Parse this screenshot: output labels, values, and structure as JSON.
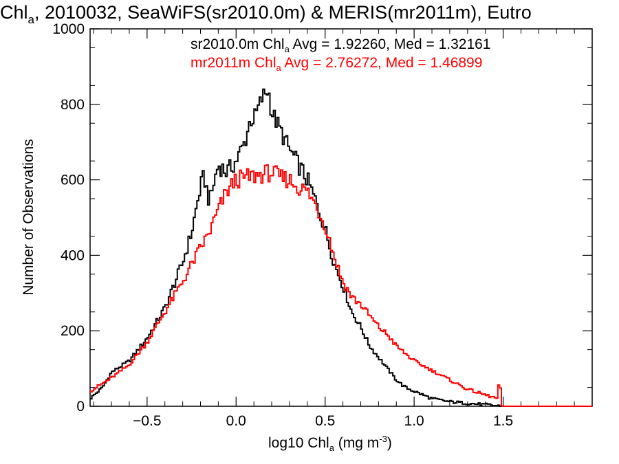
{
  "title": {
    "prefix": "Chl",
    "sub": "a",
    "rest": ", 2010032, SeaWiFS(sr2010.0m) & MERIS(mr2011m), Eutro"
  },
  "xlabel": {
    "prefix": "log10 Chl",
    "sub": "a",
    "mid": " (mg m",
    "sup": "-3",
    "end": ")"
  },
  "ylabel": "Number of Observations",
  "stats": [
    {
      "pre": "sr2010.0m Chl",
      "sub": "a",
      "post": " Avg = 1.92260, Med = 1.32161",
      "color": "#000000"
    },
    {
      "pre": "mr2011m Chl",
      "sub": "a",
      "post": " Avg = 2.76272, Med = 1.46899",
      "color": "#ff0000"
    }
  ],
  "chart_data": {
    "type": "line",
    "xlim": [
      -0.82,
      2.0
    ],
    "ylim": [
      0,
      1000
    ],
    "x_ticks": [
      -0.5,
      0.0,
      0.5,
      1.0,
      1.5
    ],
    "x_tick_labels": [
      "−0.5",
      "0.0",
      "0.5",
      "1.0",
      "1.5"
    ],
    "y_ticks": [
      0,
      200,
      400,
      600,
      800,
      1000
    ],
    "y_tick_labels": [
      "0",
      "200",
      "400",
      "600",
      "800",
      "1000"
    ],
    "grid": false,
    "step": 0.01,
    "series": [
      {
        "color": "#000000",
        "x": [
          -0.82,
          -0.75,
          -0.7,
          -0.6,
          -0.5,
          -0.4,
          -0.3,
          -0.25,
          -0.2,
          -0.18,
          -0.15,
          -0.1,
          -0.05,
          0.0,
          0.05,
          0.08,
          0.1,
          0.15,
          0.18,
          0.2,
          0.25,
          0.3,
          0.35,
          0.4,
          0.45,
          0.5,
          0.55,
          0.6,
          0.65,
          0.7,
          0.75,
          0.8,
          0.85,
          0.9,
          0.95,
          1.0,
          1.1,
          1.2,
          1.3,
          1.4,
          1.45,
          1.5,
          1.6,
          2.0
        ],
        "y": [
          20,
          50,
          90,
          120,
          180,
          260,
          380,
          460,
          580,
          610,
          540,
          640,
          620,
          650,
          700,
          760,
          760,
          820,
          840,
          780,
          730,
          680,
          640,
          600,
          540,
          470,
          380,
          320,
          250,
          210,
          160,
          130,
          100,
          70,
          50,
          40,
          20,
          12,
          8,
          4,
          2,
          0,
          0,
          0
        ]
      },
      {
        "color": "#ff0000",
        "x": [
          -0.82,
          -0.75,
          -0.7,
          -0.6,
          -0.5,
          -0.4,
          -0.3,
          -0.2,
          -0.15,
          -0.1,
          -0.05,
          0.0,
          0.05,
          0.1,
          0.15,
          0.2,
          0.25,
          0.3,
          0.35,
          0.4,
          0.45,
          0.5,
          0.55,
          0.6,
          0.65,
          0.7,
          0.75,
          0.8,
          0.85,
          0.9,
          0.95,
          1.0,
          1.1,
          1.2,
          1.3,
          1.4,
          1.47,
          1.48,
          1.49,
          1.5,
          1.6,
          2.0
        ],
        "y": [
          40,
          60,
          75,
          110,
          170,
          250,
          330,
          420,
          460,
          520,
          570,
          600,
          605,
          610,
          615,
          620,
          605,
          600,
          580,
          570,
          530,
          480,
          400,
          330,
          290,
          270,
          240,
          210,
          190,
          160,
          140,
          120,
          95,
          70,
          45,
          30,
          20,
          85,
          5,
          0,
          0,
          0
        ]
      }
    ]
  }
}
